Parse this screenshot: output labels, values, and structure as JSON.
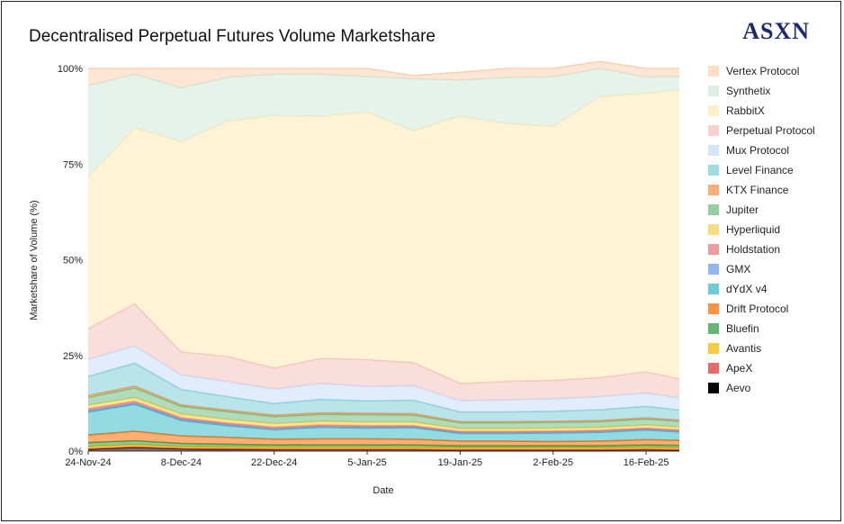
{
  "header": {
    "title": "Decentralised Perpetual Futures Volume Marketshare",
    "brand": "ASXN"
  },
  "chart_data": {
    "type": "area",
    "stacked": true,
    "normalized": true,
    "title": "Decentralised Perpetual Futures Volume Marketshare",
    "xlabel": "Date",
    "ylabel": "Marketshare of Volume (%)",
    "ylim": [
      0,
      100
    ],
    "y_ticks": [
      "0%",
      "25%",
      "50%",
      "75%",
      "100%"
    ],
    "x_ticks": [
      "24-Nov-24",
      "8-Dec-24",
      "22-Dec-24",
      "5-Jan-25",
      "19-Jan-25",
      "2-Feb-25",
      "16-Feb-25"
    ],
    "x": [
      "2024-11-24",
      "2024-12-01",
      "2024-12-08",
      "2024-12-15",
      "2024-12-22",
      "2024-12-29",
      "2025-01-05",
      "2025-01-12",
      "2025-01-19",
      "2025-01-26",
      "2025-02-02",
      "2025-02-09",
      "2025-02-16",
      "2025-02-21"
    ],
    "legend_position": "right",
    "series": [
      {
        "name": "Aevo",
        "color": "#000000",
        "values": [
          0.5,
          1.0,
          0.6,
          0.5,
          0.4,
          0.4,
          0.4,
          0.4,
          0.3,
          0.3,
          0.3,
          0.3,
          0.4,
          0.3
        ]
      },
      {
        "name": "ApeX",
        "color": "#e53935",
        "values": [
          0.1,
          0.1,
          0.1,
          0.1,
          0.1,
          0.1,
          0.1,
          0.1,
          0.1,
          0.1,
          0.1,
          0.1,
          0.1,
          0.1
        ]
      },
      {
        "name": "Avantis",
        "color": "#f6b800",
        "values": [
          0.6,
          0.6,
          0.5,
          0.5,
          0.5,
          0.5,
          0.5,
          0.5,
          0.5,
          0.5,
          0.5,
          0.5,
          0.5,
          0.5
        ]
      },
      {
        "name": "Bluefin",
        "color": "#2e9e48",
        "values": [
          1.0,
          1.0,
          0.8,
          0.7,
          0.6,
          0.6,
          0.6,
          0.6,
          0.5,
          0.5,
          0.5,
          0.5,
          0.6,
          0.6
        ]
      },
      {
        "name": "Drift Protocol",
        "color": "#ff6d00",
        "values": [
          2.0,
          2.5,
          2.0,
          1.8,
          1.5,
          1.6,
          1.6,
          1.5,
          1.2,
          1.2,
          1.1,
          1.2,
          1.4,
          1.3
        ]
      },
      {
        "name": "dYdX v4",
        "color": "#3dbbc8",
        "values": [
          6.0,
          7.0,
          4.0,
          3.0,
          2.5,
          3.0,
          2.8,
          3.0,
          2.0,
          2.0,
          2.2,
          2.3,
          2.5,
          2.2
        ]
      },
      {
        "name": "GMX",
        "color": "#6d9eeb",
        "values": [
          0.3,
          0.3,
          0.3,
          0.3,
          0.2,
          0.2,
          0.2,
          0.2,
          0.2,
          0.2,
          0.2,
          0.2,
          0.2,
          0.2
        ]
      },
      {
        "name": "Holdstation",
        "color": "#e87a7a",
        "values": [
          0.5,
          0.5,
          0.4,
          0.4,
          0.4,
          0.4,
          0.4,
          0.3,
          0.3,
          0.3,
          0.3,
          0.3,
          0.3,
          0.3
        ]
      },
      {
        "name": "Hyperliquid",
        "color": "#f5cf4e",
        "values": [
          1.0,
          1.0,
          1.0,
          1.0,
          1.0,
          1.0,
          1.0,
          1.0,
          0.8,
          0.8,
          0.8,
          0.8,
          0.8,
          0.8
        ]
      },
      {
        "name": "Jupiter",
        "color": "#6ec086",
        "values": [
          2.0,
          2.5,
          2.0,
          2.0,
          1.8,
          1.8,
          1.9,
          1.8,
          1.5,
          1.5,
          1.5,
          1.5,
          1.6,
          1.5
        ]
      },
      {
        "name": "KTX Finance",
        "color": "#f7934c",
        "values": [
          0.5,
          0.5,
          0.4,
          0.4,
          0.4,
          0.4,
          0.4,
          0.4,
          0.3,
          0.3,
          0.3,
          0.3,
          0.3,
          0.3
        ]
      },
      {
        "name": "Level Finance",
        "color": "#7fd0d8",
        "values": [
          5.0,
          6.0,
          4.0,
          3.5,
          3.0,
          3.5,
          3.2,
          3.5,
          2.5,
          2.5,
          2.6,
          2.8,
          3.0,
          2.6
        ]
      },
      {
        "name": "Mux Protocol",
        "color": "#c9dcfa",
        "values": [
          4.5,
          4.5,
          3.8,
          4.0,
          3.8,
          4.2,
          3.8,
          3.8,
          3.0,
          3.2,
          3.3,
          3.4,
          3.5,
          3.2
        ]
      },
      {
        "name": "Perpetual Protocol",
        "color": "#f4c2bd",
        "values": [
          8.0,
          11.0,
          6.0,
          6.5,
          5.5,
          6.5,
          7.0,
          6.0,
          4.5,
          4.8,
          4.8,
          5.0,
          5.5,
          5.0
        ]
      },
      {
        "name": "RabbitX",
        "color": "#fde9b6",
        "values": [
          39.5,
          46.0,
          55.0,
          61.5,
          66.0,
          63.3,
          64.7,
          60.6,
          69.8,
          67.4,
          66.4,
          73.4,
          72.8,
          75.5
        ]
      },
      {
        "name": "Synthetix",
        "color": "#cfe9da",
        "values": [
          24.0,
          14.0,
          14.0,
          11.5,
          10.8,
          11.0,
          9.3,
          13.6,
          9.5,
          12.0,
          12.9,
          7.4,
          4.3,
          3.4
        ]
      },
      {
        "name": "Vertex Protocol",
        "color": "#fbd2b1",
        "values": [
          4.5,
          1.5,
          5.1,
          2.3,
          1.5,
          1.5,
          2.1,
          0.8,
          2.0,
          2.4,
          2.2,
          1.8,
          2.2,
          2.2
        ]
      }
    ],
    "legend_order": [
      "Vertex Protocol",
      "Synthetix",
      "RabbitX",
      "Perpetual Protocol",
      "Mux Protocol",
      "Level Finance",
      "KTX Finance",
      "Jupiter",
      "Hyperliquid",
      "Holdstation",
      "GMX",
      "dYdX v4",
      "Drift Protocol",
      "Bluefin",
      "Avantis",
      "ApeX",
      "Aevo"
    ]
  }
}
